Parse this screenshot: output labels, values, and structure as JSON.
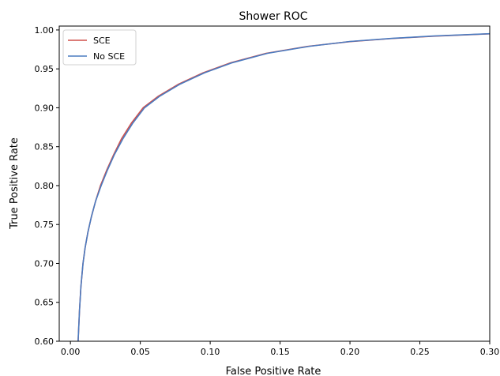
{
  "chart_data": {
    "type": "line",
    "title": "Shower ROC",
    "xlabel": "False Positive Rate",
    "ylabel": "True Positive Rate",
    "xlim": [
      -0.008,
      0.3
    ],
    "ylim": [
      0.6,
      1.005
    ],
    "xticks": [
      0.0,
      0.05,
      0.1,
      0.15,
      0.2,
      0.25,
      0.3
    ],
    "xtick_labels": [
      "0.00",
      "0.05",
      "0.10",
      "0.15",
      "0.20",
      "0.25",
      "0.30"
    ],
    "yticks": [
      0.6,
      0.65,
      0.7,
      0.75,
      0.8,
      0.85,
      0.9,
      0.95,
      1.0
    ],
    "ytick_labels": [
      "0.60",
      "0.65",
      "0.70",
      "0.75",
      "0.80",
      "0.85",
      "0.90",
      "0.95",
      "1.00"
    ],
    "grid": false,
    "legend_position": "top-left",
    "series": [
      {
        "name": "SCE",
        "color": "#d0504c",
        "points": [
          [
            0.0055,
            0.6
          ],
          [
            0.0065,
            0.64
          ],
          [
            0.0075,
            0.67
          ],
          [
            0.009,
            0.7
          ],
          [
            0.0105,
            0.72
          ],
          [
            0.0125,
            0.74
          ],
          [
            0.015,
            0.76
          ],
          [
            0.018,
            0.78
          ],
          [
            0.0215,
            0.8
          ],
          [
            0.026,
            0.82
          ],
          [
            0.031,
            0.84
          ],
          [
            0.0365,
            0.86
          ],
          [
            0.0435,
            0.88
          ],
          [
            0.052,
            0.9
          ],
          [
            0.063,
            0.915
          ],
          [
            0.077,
            0.93
          ],
          [
            0.095,
            0.945
          ],
          [
            0.115,
            0.958
          ],
          [
            0.14,
            0.97
          ],
          [
            0.17,
            0.979
          ],
          [
            0.2,
            0.985
          ],
          [
            0.23,
            0.989
          ],
          [
            0.26,
            0.992
          ],
          [
            0.3,
            0.995
          ]
        ]
      },
      {
        "name": "No SCE",
        "color": "#4a7bc0",
        "points": [
          [
            0.0055,
            0.6
          ],
          [
            0.0065,
            0.64
          ],
          [
            0.0075,
            0.67
          ],
          [
            0.009,
            0.7
          ],
          [
            0.0105,
            0.72
          ],
          [
            0.0125,
            0.74
          ],
          [
            0.015,
            0.76
          ],
          [
            0.018,
            0.78
          ],
          [
            0.022,
            0.8
          ],
          [
            0.0265,
            0.82
          ],
          [
            0.0315,
            0.84
          ],
          [
            0.0375,
            0.86
          ],
          [
            0.0445,
            0.88
          ],
          [
            0.053,
            0.9
          ],
          [
            0.064,
            0.915
          ],
          [
            0.078,
            0.93
          ],
          [
            0.096,
            0.945
          ],
          [
            0.116,
            0.958
          ],
          [
            0.141,
            0.97
          ],
          [
            0.171,
            0.979
          ],
          [
            0.2,
            0.9852
          ],
          [
            0.23,
            0.9892
          ],
          [
            0.26,
            0.9922
          ],
          [
            0.3,
            0.9952
          ]
        ]
      }
    ]
  }
}
